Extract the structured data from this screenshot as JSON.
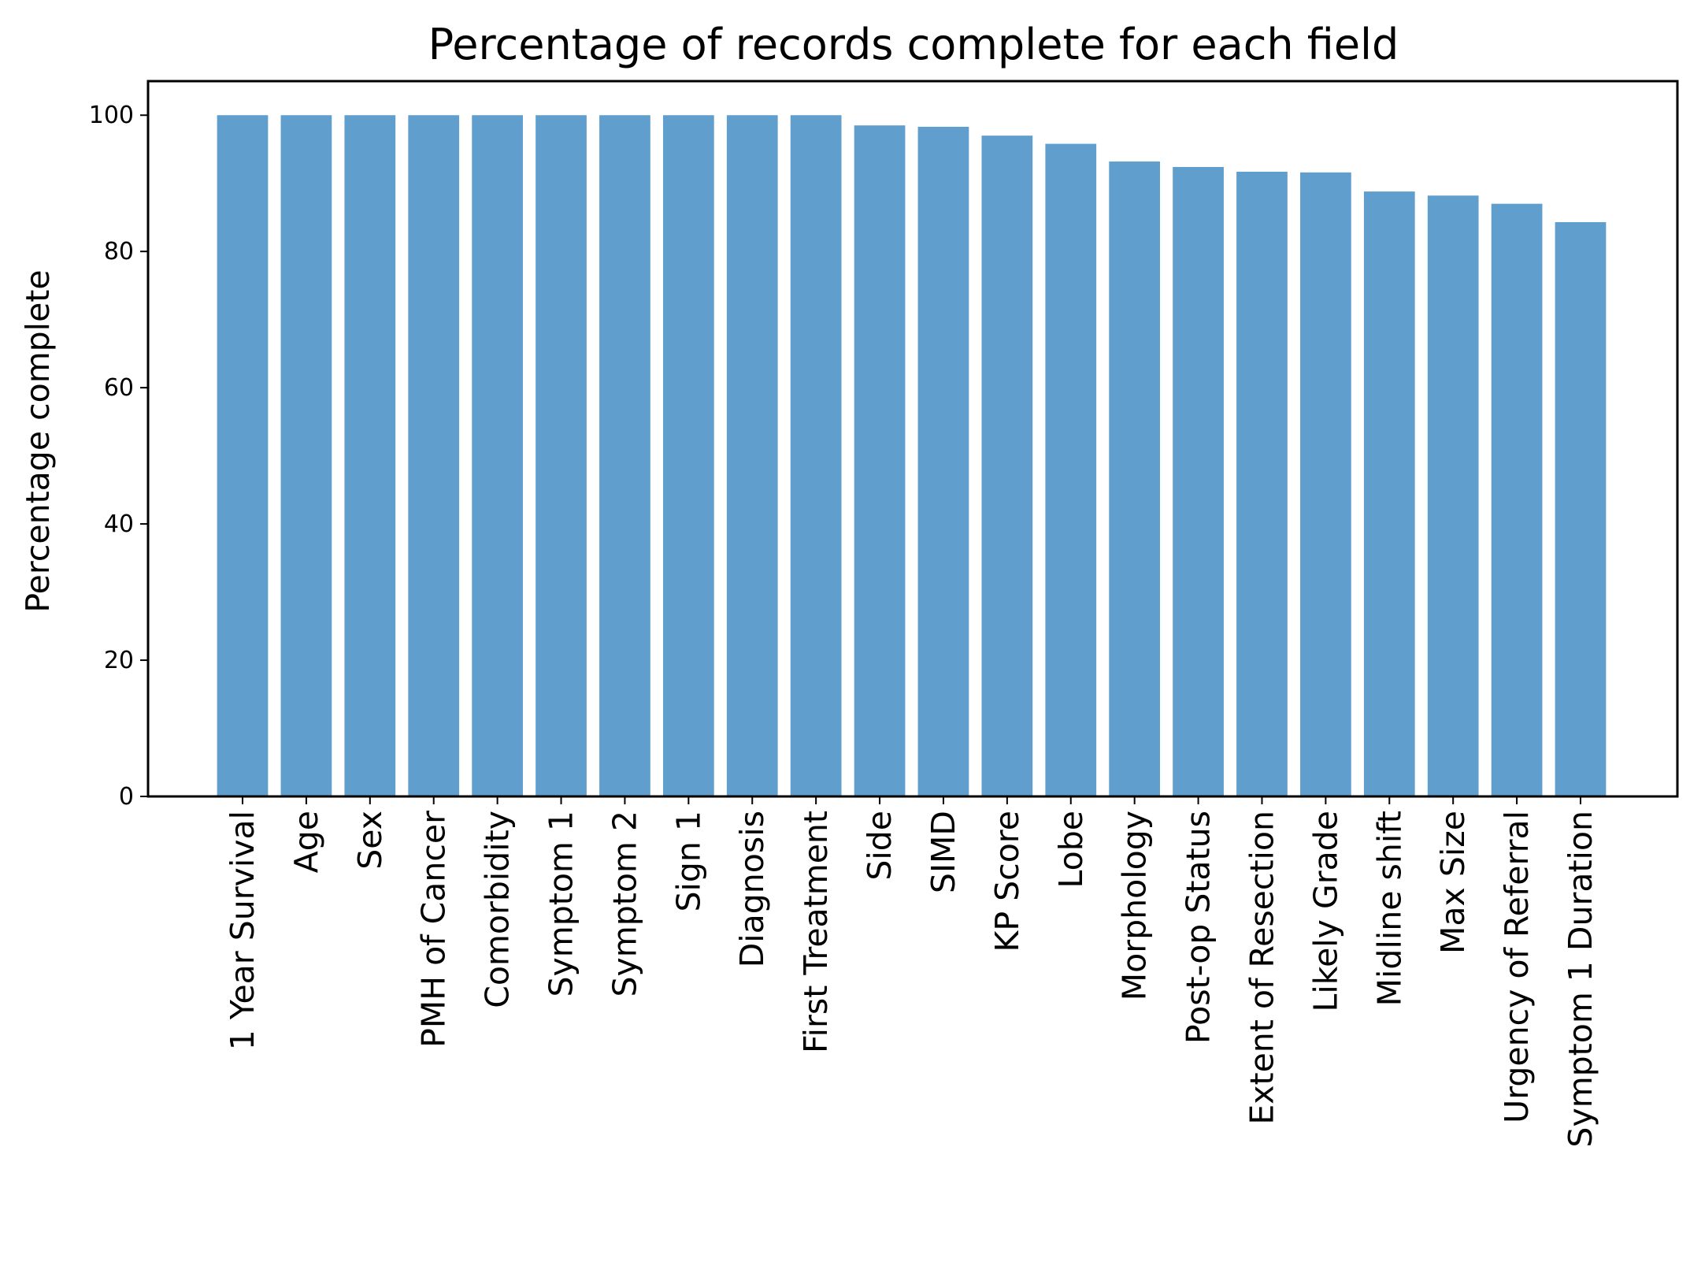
{
  "chart_data": {
    "type": "bar",
    "title": "Percentage of records complete for each field",
    "xlabel": "",
    "ylabel": "Percentage complete",
    "ylim": [
      0,
      105
    ],
    "yticks": [
      0,
      20,
      40,
      60,
      80,
      100
    ],
    "ytick_labels": [
      "0",
      "20",
      "40",
      "60",
      "80",
      "100"
    ],
    "grid": false,
    "bar_color": "#5f9ecd",
    "categories": [
      "1 Year Survival",
      "Age",
      "Sex",
      "PMH of Cancer",
      "Comorbidity",
      "Symptom 1",
      "Symptom 2",
      "Sign 1",
      "Diagnosis",
      "First Treatment",
      "Side",
      "SIMD",
      "KP Score",
      "Lobe",
      "Morphology",
      "Post-op Status",
      "Extent of Resection",
      "Likely Grade",
      "Midline shift",
      "Max Size",
      "Urgency of Referral",
      "Symptom 1 Duration"
    ],
    "values": [
      100,
      100,
      100,
      100,
      100,
      100,
      100,
      100,
      100,
      100,
      98.5,
      98.3,
      97.0,
      95.8,
      93.2,
      92.4,
      91.7,
      91.6,
      88.8,
      88.2,
      87.0,
      84.3
    ]
  }
}
